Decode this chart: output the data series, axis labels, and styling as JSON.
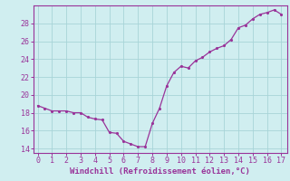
{
  "xlabel": "Windchill (Refroidissement éolien,°C)",
  "background_color": "#d0eef0",
  "grid_color": "#a8d4d8",
  "line_color": "#993399",
  "marker_color": "#993399",
  "x_data": [
    0,
    0.5,
    1,
    1.5,
    2,
    2.5,
    3,
    3.5,
    4,
    4.5,
    5,
    5.5,
    6,
    6.5,
    7,
    7.5,
    8,
    8.5,
    9,
    9.5,
    10,
    10.5,
    11,
    11.5,
    12,
    12.5,
    13,
    13.5,
    14,
    14.5,
    15,
    15.5,
    16,
    16.5,
    17
  ],
  "y_data": [
    18.8,
    18.5,
    18.2,
    18.2,
    18.2,
    18.0,
    18.0,
    17.5,
    17.3,
    17.2,
    15.8,
    15.7,
    14.8,
    14.5,
    14.2,
    14.2,
    16.8,
    18.5,
    21.0,
    22.5,
    23.2,
    23.0,
    23.8,
    24.2,
    24.8,
    25.2,
    25.5,
    26.2,
    27.5,
    27.8,
    28.5,
    29.0,
    29.2,
    29.5,
    29.0
  ],
  "xlim": [
    -0.3,
    17.4
  ],
  "ylim": [
    13.5,
    30.0
  ],
  "yticks": [
    14,
    16,
    18,
    20,
    22,
    24,
    26,
    28
  ],
  "xticks": [
    0,
    1,
    2,
    3,
    4,
    5,
    6,
    7,
    8,
    9,
    10,
    11,
    12,
    13,
    14,
    15,
    16,
    17
  ],
  "tick_fontsize": 6,
  "xlabel_fontsize": 6.5,
  "linewidth": 0.9,
  "markersize": 2.5
}
